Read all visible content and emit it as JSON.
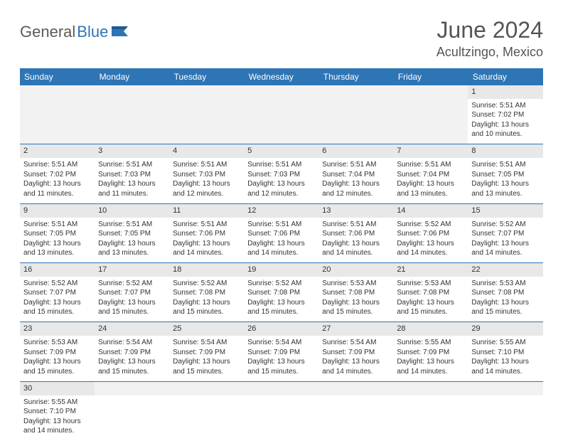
{
  "logo": {
    "general": "General",
    "blue": "Blue"
  },
  "title": "June 2024",
  "location": "Acultzingo, Mexico",
  "colors": {
    "header_bg": "#2e75b6",
    "header_fg": "#ffffff",
    "daynum_bg": "#e8e8e8",
    "border": "#2e75b6"
  },
  "day_headers": [
    "Sunday",
    "Monday",
    "Tuesday",
    "Wednesday",
    "Thursday",
    "Friday",
    "Saturday"
  ],
  "weeks": [
    {
      "nums": [
        "",
        "",
        "",
        "",
        "",
        "",
        "1"
      ],
      "cells": [
        null,
        null,
        null,
        null,
        null,
        null,
        {
          "sr": "5:51 AM",
          "ss": "7:02 PM",
          "dl": "13 hours and 10 minutes."
        }
      ]
    },
    {
      "nums": [
        "2",
        "3",
        "4",
        "5",
        "6",
        "7",
        "8"
      ],
      "cells": [
        {
          "sr": "5:51 AM",
          "ss": "7:02 PM",
          "dl": "13 hours and 11 minutes."
        },
        {
          "sr": "5:51 AM",
          "ss": "7:03 PM",
          "dl": "13 hours and 11 minutes."
        },
        {
          "sr": "5:51 AM",
          "ss": "7:03 PM",
          "dl": "13 hours and 12 minutes."
        },
        {
          "sr": "5:51 AM",
          "ss": "7:03 PM",
          "dl": "13 hours and 12 minutes."
        },
        {
          "sr": "5:51 AM",
          "ss": "7:04 PM",
          "dl": "13 hours and 12 minutes."
        },
        {
          "sr": "5:51 AM",
          "ss": "7:04 PM",
          "dl": "13 hours and 13 minutes."
        },
        {
          "sr": "5:51 AM",
          "ss": "7:05 PM",
          "dl": "13 hours and 13 minutes."
        }
      ]
    },
    {
      "nums": [
        "9",
        "10",
        "11",
        "12",
        "13",
        "14",
        "15"
      ],
      "cells": [
        {
          "sr": "5:51 AM",
          "ss": "7:05 PM",
          "dl": "13 hours and 13 minutes."
        },
        {
          "sr": "5:51 AM",
          "ss": "7:05 PM",
          "dl": "13 hours and 13 minutes."
        },
        {
          "sr": "5:51 AM",
          "ss": "7:06 PM",
          "dl": "13 hours and 14 minutes."
        },
        {
          "sr": "5:51 AM",
          "ss": "7:06 PM",
          "dl": "13 hours and 14 minutes."
        },
        {
          "sr": "5:51 AM",
          "ss": "7:06 PM",
          "dl": "13 hours and 14 minutes."
        },
        {
          "sr": "5:52 AM",
          "ss": "7:06 PM",
          "dl": "13 hours and 14 minutes."
        },
        {
          "sr": "5:52 AM",
          "ss": "7:07 PM",
          "dl": "13 hours and 14 minutes."
        }
      ]
    },
    {
      "nums": [
        "16",
        "17",
        "18",
        "19",
        "20",
        "21",
        "22"
      ],
      "cells": [
        {
          "sr": "5:52 AM",
          "ss": "7:07 PM",
          "dl": "13 hours and 15 minutes."
        },
        {
          "sr": "5:52 AM",
          "ss": "7:07 PM",
          "dl": "13 hours and 15 minutes."
        },
        {
          "sr": "5:52 AM",
          "ss": "7:08 PM",
          "dl": "13 hours and 15 minutes."
        },
        {
          "sr": "5:52 AM",
          "ss": "7:08 PM",
          "dl": "13 hours and 15 minutes."
        },
        {
          "sr": "5:53 AM",
          "ss": "7:08 PM",
          "dl": "13 hours and 15 minutes."
        },
        {
          "sr": "5:53 AM",
          "ss": "7:08 PM",
          "dl": "13 hours and 15 minutes."
        },
        {
          "sr": "5:53 AM",
          "ss": "7:08 PM",
          "dl": "13 hours and 15 minutes."
        }
      ]
    },
    {
      "nums": [
        "23",
        "24",
        "25",
        "26",
        "27",
        "28",
        "29"
      ],
      "cells": [
        {
          "sr": "5:53 AM",
          "ss": "7:09 PM",
          "dl": "13 hours and 15 minutes."
        },
        {
          "sr": "5:54 AM",
          "ss": "7:09 PM",
          "dl": "13 hours and 15 minutes."
        },
        {
          "sr": "5:54 AM",
          "ss": "7:09 PM",
          "dl": "13 hours and 15 minutes."
        },
        {
          "sr": "5:54 AM",
          "ss": "7:09 PM",
          "dl": "13 hours and 15 minutes."
        },
        {
          "sr": "5:54 AM",
          "ss": "7:09 PM",
          "dl": "13 hours and 14 minutes."
        },
        {
          "sr": "5:55 AM",
          "ss": "7:09 PM",
          "dl": "13 hours and 14 minutes."
        },
        {
          "sr": "5:55 AM",
          "ss": "7:10 PM",
          "dl": "13 hours and 14 minutes."
        }
      ]
    },
    {
      "nums": [
        "30",
        "",
        "",
        "",
        "",
        "",
        ""
      ],
      "cells": [
        {
          "sr": "5:55 AM",
          "ss": "7:10 PM",
          "dl": "13 hours and 14 minutes."
        },
        null,
        null,
        null,
        null,
        null,
        null
      ]
    }
  ],
  "labels": {
    "sunrise": "Sunrise:",
    "sunset": "Sunset:",
    "daylight": "Daylight:"
  }
}
